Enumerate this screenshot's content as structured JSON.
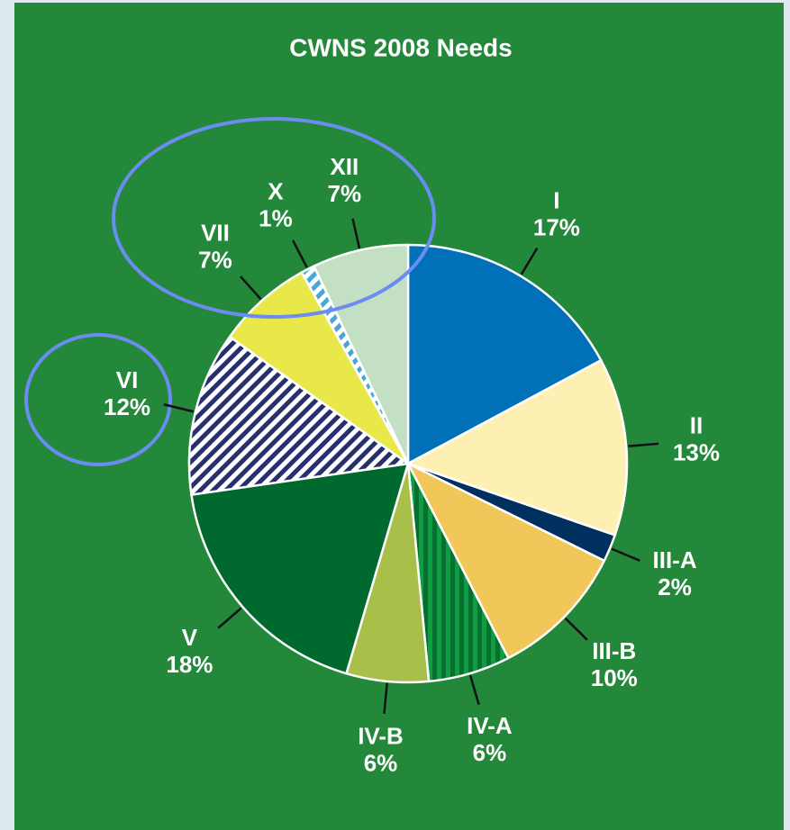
{
  "chart_data": {
    "type": "pie",
    "title": "CWNS 2008 Needs",
    "categories": [
      "I",
      "II",
      "III-A",
      "III-B",
      "IV-A",
      "IV-B",
      "V",
      "VI",
      "VII",
      "X",
      "XII"
    ],
    "values": [
      17,
      13,
      2,
      10,
      6,
      6,
      18,
      12,
      7,
      1,
      7
    ],
    "value_labels": [
      "17%",
      "13%",
      "2%",
      "10%",
      "6%",
      "6%",
      "18%",
      "12%",
      "7%",
      "1%",
      "7%"
    ],
    "colors": [
      "#0070b8",
      "#fdf0b2",
      "#00305e",
      "#f2c75a",
      "#0c9e40",
      "#a8bf4a",
      "#006a2e",
      "#ffffff",
      "#e8e84a",
      "#ffffff",
      "#c4e0c4"
    ],
    "patterns": [
      null,
      null,
      null,
      null,
      {
        "style": "vertical",
        "stripe": "#06712e"
      },
      null,
      null,
      {
        "style": "diagonal",
        "stripe": "#27306e"
      },
      null,
      {
        "style": "diagonal",
        "stripe": "#4aa6d8"
      },
      null
    ]
  }
}
